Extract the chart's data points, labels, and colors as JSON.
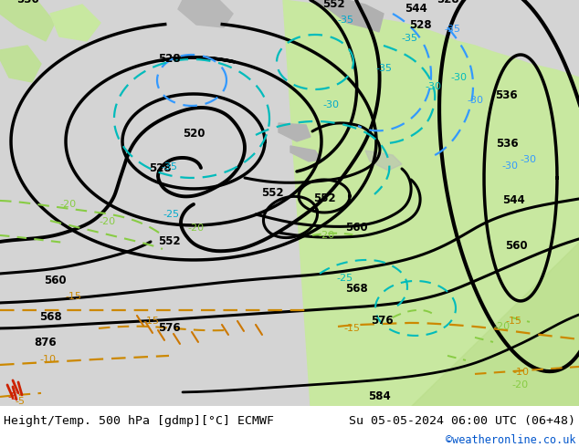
{
  "title_left": "Height/Temp. 500 hPa [gdmp][°C] ECMWF",
  "title_right": "Su 05-05-2024 06:00 UTC (06+48)",
  "copyright": "©weatheronline.co.uk",
  "bg_ocean": "#d8d8d8",
  "bg_land_green": "#c8e8a0",
  "bg_land_gray": "#b8b8b8",
  "figsize": [
    6.34,
    4.9
  ],
  "dpi": 100
}
